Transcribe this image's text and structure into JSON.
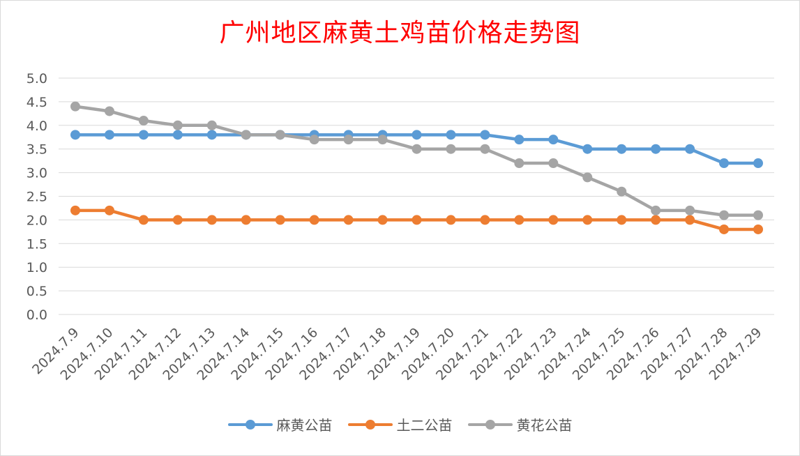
{
  "chart_data": {
    "type": "line",
    "title": "广州地区麻黄土鸡苗价格走势图",
    "categories": [
      "2024.7.9",
      "2024.7.10",
      "2024.7.11",
      "2024.7.12",
      "2024.7.13",
      "2024.7.14",
      "2024.7.15",
      "2024.7.16",
      "2024.7.17",
      "2024.7.18",
      "2024.7.19",
      "2024.7.20",
      "2024.7.21",
      "2024.7.22",
      "2024.7.23",
      "2024.7.24",
      "2024.7.25",
      "2024.7.26",
      "2024.7.27",
      "2024.7.28",
      "2024.7.29"
    ],
    "yticks": [
      "0.0",
      "0.5",
      "1.0",
      "1.5",
      "2.0",
      "2.5",
      "3.0",
      "3.5",
      "4.0",
      "4.5",
      "5.0"
    ],
    "ylim": [
      0,
      5
    ],
    "grid": true,
    "legend_position": "bottom",
    "series": [
      {
        "name": "麻黄公苗",
        "color": "#5b9bd5",
        "values": [
          3.8,
          3.8,
          3.8,
          3.8,
          3.8,
          3.8,
          3.8,
          3.8,
          3.8,
          3.8,
          3.8,
          3.8,
          3.8,
          3.7,
          3.7,
          3.5,
          3.5,
          3.5,
          3.5,
          3.2,
          3.2
        ]
      },
      {
        "name": "土二公苗",
        "color": "#ed7d31",
        "values": [
          2.2,
          2.2,
          2.0,
          2.0,
          2.0,
          2.0,
          2.0,
          2.0,
          2.0,
          2.0,
          2.0,
          2.0,
          2.0,
          2.0,
          2.0,
          2.0,
          2.0,
          2.0,
          2.0,
          1.8,
          1.8
        ]
      },
      {
        "name": "黄花公苗",
        "color": "#a5a5a5",
        "values": [
          4.4,
          4.3,
          4.1,
          4.0,
          4.0,
          3.8,
          3.8,
          3.7,
          3.7,
          3.7,
          3.5,
          3.5,
          3.5,
          3.2,
          3.2,
          2.9,
          2.6,
          2.2,
          2.2,
          2.1,
          2.1
        ]
      }
    ]
  }
}
